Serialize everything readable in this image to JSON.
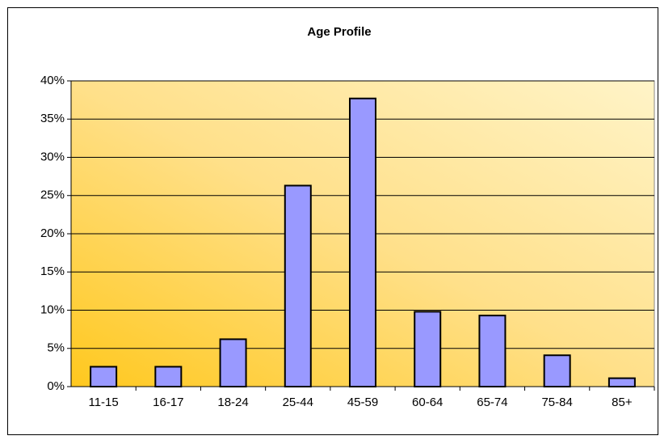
{
  "chart_data": {
    "type": "bar",
    "title": "Age Profile",
    "categories": [
      "11-15",
      "16-17",
      "18-24",
      "25-44",
      "45-59",
      "60-64",
      "65-74",
      "75-84",
      "85+"
    ],
    "values": [
      2.6,
      2.6,
      6.2,
      26.3,
      37.7,
      9.8,
      9.3,
      4.1,
      1.1
    ],
    "color": "#9999ff",
    "ylim": [
      0,
      40
    ],
    "yticks": [
      {
        "value": 0,
        "label": "0%"
      },
      {
        "value": 5,
        "label": "5%"
      },
      {
        "value": 10,
        "label": "10%"
      },
      {
        "value": 15,
        "label": "15%"
      },
      {
        "value": 20,
        "label": "20%"
      },
      {
        "value": 25,
        "label": "25%"
      },
      {
        "value": 30,
        "label": "30%"
      },
      {
        "value": 35,
        "label": "35%"
      },
      {
        "value": 40,
        "label": "40%"
      }
    ],
    "grid": true
  }
}
